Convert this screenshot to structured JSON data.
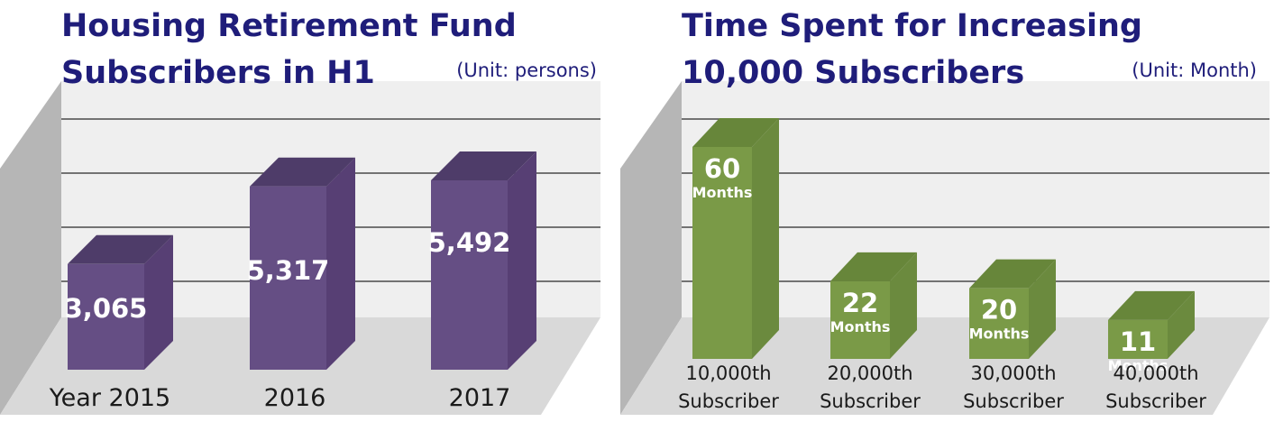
{
  "chart_data": [
    {
      "type": "bar",
      "title_lines": [
        "Housing Retirement Fund",
        "Subscribers in H1"
      ],
      "unit": "(Unit: persons)",
      "categories": [
        "Year 2015",
        "2016",
        "2017"
      ],
      "values": [
        3065,
        5317,
        5492
      ],
      "value_labels": [
        "3,065",
        "5,317",
        "5,492"
      ],
      "colors": {
        "bar": "#654e84",
        "bar_top": "#4e3c69",
        "bar_side": "#573f74"
      },
      "grid": true
    },
    {
      "type": "bar",
      "title_lines": [
        "Time Spent for Increasing",
        "10,000 Subscribers"
      ],
      "unit": "(Unit: Month)",
      "categories": [
        "10,000th\nSubscriber",
        "20,000th\nSubscriber",
        "30,000th\nSubscriber",
        "40,000th\nSubscriber"
      ],
      "category_lines": [
        [
          "10,000th",
          "Subscriber"
        ],
        [
          "20,000th",
          "Subscriber"
        ],
        [
          "30,000th",
          "Subscriber"
        ],
        [
          "40,000th",
          "Subscriber"
        ]
      ],
      "values": [
        60,
        22,
        20,
        11
      ],
      "value_labels": [
        "60",
        "22",
        "20",
        "11"
      ],
      "value_unit": "Months",
      "colors": {
        "bar": "#7a9a47",
        "bar_top": "#67863a",
        "bar_side": "#6b8a3e"
      },
      "grid": true
    }
  ]
}
